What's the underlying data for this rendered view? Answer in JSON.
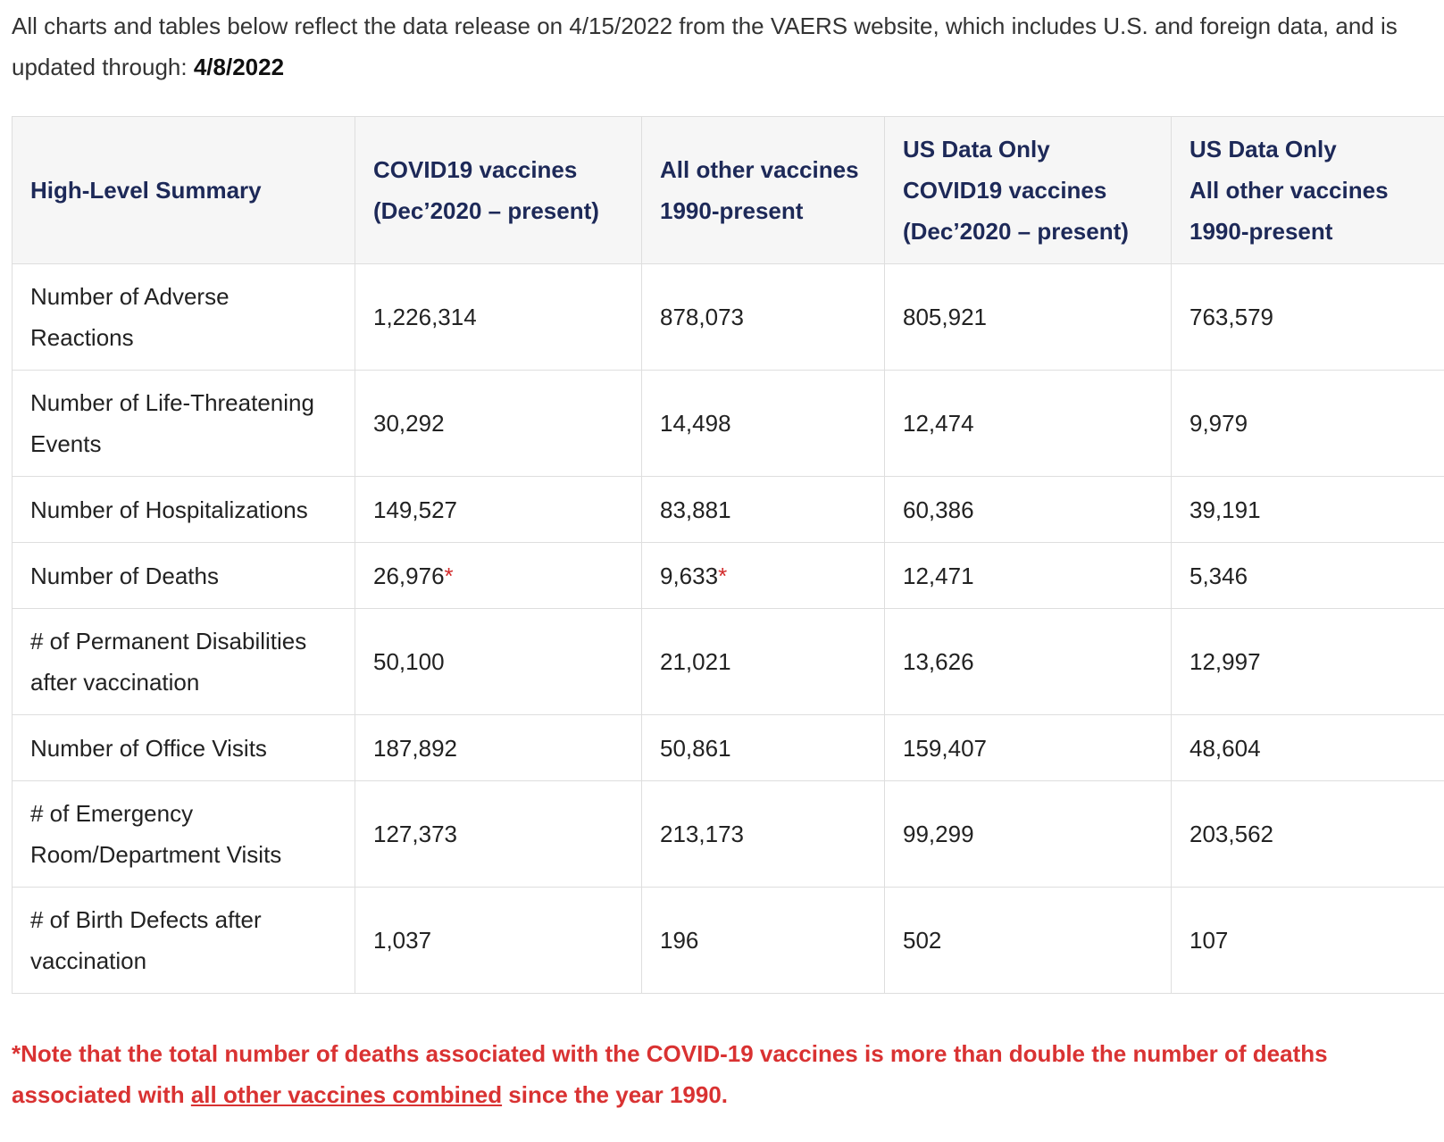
{
  "intro": {
    "text": "All charts and tables below reflect the data release on 4/15/2022 from the VAERS website, which includes U.S. and foreign data, and is updated through: ",
    "date": "4/8/2022"
  },
  "table": {
    "headers": [
      {
        "line1": "High-Level Summary",
        "line2": "",
        "line3": ""
      },
      {
        "line1": "COVID19 vaccines",
        "line2": "(Dec’2020 – present)",
        "line3": ""
      },
      {
        "line1": "All other vaccines",
        "line2": "1990-present",
        "line3": ""
      },
      {
        "line1": "US Data Only",
        "line2": "COVID19 vaccines",
        "line3": "(Dec’2020 – present)"
      },
      {
        "line1": "US Data Only",
        "line2": "All other vaccines",
        "line3": "1990-present"
      }
    ],
    "rows": [
      {
        "label_l1": "Number of Adverse",
        "label_l2": "Reactions",
        "c1": "1,226,314",
        "c1_mark": "",
        "c2": "878,073",
        "c2_mark": "",
        "c3": "805,921",
        "c4": "763,579"
      },
      {
        "label_l1": "Number of Life-Threatening",
        "label_l2": "Events",
        "c1": "30,292",
        "c1_mark": "",
        "c2": "14,498",
        "c2_mark": "",
        "c3": "12,474",
        "c4": "9,979"
      },
      {
        "label_l1": "Number of Hospitalizations",
        "label_l2": "",
        "c1": "149,527",
        "c1_mark": "",
        "c2": "83,881",
        "c2_mark": "",
        "c3": "60,386",
        "c4": "39,191"
      },
      {
        "label_l1": "Number of Deaths",
        "label_l2": "",
        "c1": "26,976",
        "c1_mark": "*",
        "c2": "9,633",
        "c2_mark": "*",
        "c3": "12,471",
        "c4": "5,346"
      },
      {
        "label_l1": "# of Permanent Disabilities",
        "label_l2": "after vaccination",
        "c1": "50,100",
        "c1_mark": "",
        "c2": "21,021",
        "c2_mark": "",
        "c3": "13,626",
        "c4": "12,997"
      },
      {
        "label_l1": "Number of Office Visits",
        "label_l2": "",
        "c1": "187,892",
        "c1_mark": "",
        "c2": "50,861",
        "c2_mark": "",
        "c3": "159,407",
        "c4": "48,604"
      },
      {
        "label_l1": "# of Emergency",
        "label_l2": "Room/Department Visits",
        "c1": "127,373",
        "c1_mark": "",
        "c2": "213,173",
        "c2_mark": "",
        "c3": "99,299",
        "c4": "203,562"
      },
      {
        "label_l1": "# of Birth Defects after",
        "label_l2": "vaccination",
        "c1": "1,037",
        "c1_mark": "",
        "c2": "196",
        "c2_mark": "",
        "c3": "502",
        "c4": "107"
      }
    ]
  },
  "note": {
    "part1": "*Note that the total number of deaths associated with the COVID-19 vaccines is more than double the number of deaths",
    "part2": "associated with ",
    "underlined": "all other vaccines combined",
    "part3": " since the year 1990."
  },
  "colors": {
    "header_text": "#1d2958",
    "header_bg": "#f6f6f6",
    "note_red": "#d93232",
    "border": "#dedede"
  }
}
